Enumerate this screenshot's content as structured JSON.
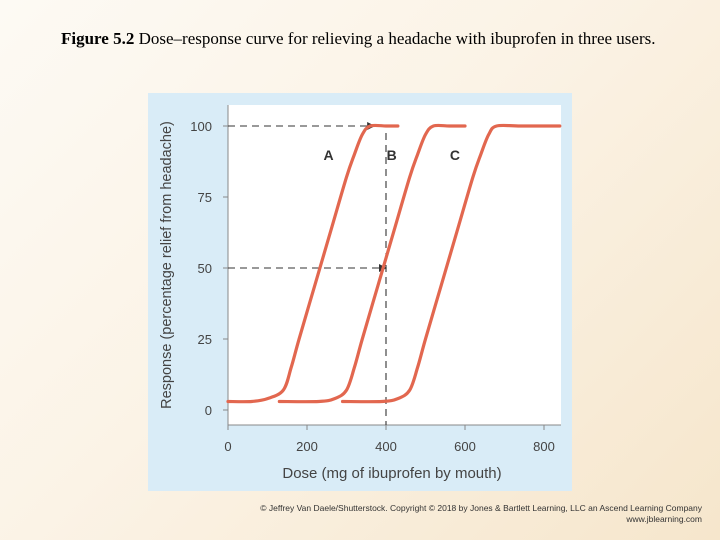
{
  "caption": {
    "label": "Figure 5.2",
    "text": " Dose–response curve for relieving a headache with ibuprofen in three users."
  },
  "credit": {
    "line1": "© Jeffrey Van Daele/Shutterstock. Copyright © 2018 by Jones & Bartlett Learning, LLC an Ascend Learning Company",
    "line2": "www.jblearning.com"
  },
  "chart_data": {
    "type": "line",
    "title": "",
    "xlabel": "Dose (mg of ibuprofen by mouth)",
    "ylabel": "Response (percentage relief from headache)",
    "xlim": [
      0,
      840
    ],
    "ylim": [
      0,
      106
    ],
    "xticks": [
      0,
      200,
      400,
      600,
      800
    ],
    "yticks": [
      0,
      25,
      50,
      75,
      100
    ],
    "grid": false,
    "colors": {
      "panel": "#d9ecf7",
      "plot": "#ffffff",
      "curve": "#e2674f",
      "axis": "#888888",
      "guide": "#333333"
    },
    "series": [
      {
        "name": "A",
        "x": [
          0,
          60,
          100,
          140,
          160,
          180,
          220,
          260,
          300,
          320,
          340,
          360,
          400,
          430
        ],
        "y": [
          3,
          3,
          4,
          7,
          15,
          25,
          44,
          63,
          82,
          90,
          97,
          100,
          100,
          100
        ]
      },
      {
        "name": "B",
        "x": [
          130,
          230,
          270,
          300,
          320,
          340,
          380,
          420,
          460,
          480,
          500,
          520,
          560,
          600
        ],
        "y": [
          3,
          3,
          4,
          7,
          15,
          25,
          44,
          63,
          82,
          90,
          97,
          100,
          100,
          100
        ]
      },
      {
        "name": "C",
        "x": [
          290,
          390,
          430,
          460,
          480,
          500,
          540,
          580,
          620,
          640,
          660,
          680,
          740,
          840
        ],
        "y": [
          3,
          3,
          4,
          7,
          15,
          25,
          44,
          63,
          82,
          90,
          97,
          100,
          100,
          100
        ]
      }
    ],
    "guides": [
      {
        "from": [
          0,
          100
        ],
        "to": [
          370,
          100
        ],
        "vertical_to": 0
      },
      {
        "from": [
          0,
          50
        ],
        "to": [
          400,
          50
        ]
      }
    ]
  }
}
